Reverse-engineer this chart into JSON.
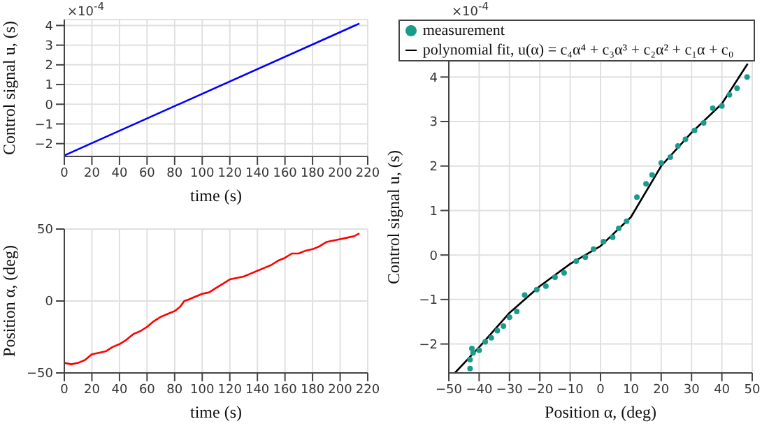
{
  "chart_data": [
    {
      "type": "line",
      "xlabel": "time (s)",
      "ylabel": "Control signal u, (s)",
      "annotations": [
        "×10$^{-4}$"
      ],
      "grid": true,
      "legend": false,
      "marker": "none",
      "xlim": [
        0,
        220
      ],
      "xticks": [
        0,
        20,
        40,
        60,
        80,
        100,
        120,
        140,
        160,
        180,
        200,
        220
      ],
      "ylim": [
        -2.65,
        4.3
      ],
      "yticks": [
        -2,
        -1,
        0,
        1,
        2,
        3,
        4
      ],
      "series": [
        {
          "color": "#0000ff",
          "x": [
            0,
            214
          ],
          "values": [
            -2.6,
            4.1
          ]
        }
      ]
    },
    {
      "type": "line",
      "xlabel": "time (s)",
      "ylabel": "Position α, (deg)",
      "grid": true,
      "legend": false,
      "marker": "none",
      "xlim": [
        0,
        220
      ],
      "xticks": [
        0,
        20,
        40,
        60,
        80,
        100,
        120,
        140,
        160,
        180,
        200,
        220
      ],
      "ylim": [
        -50,
        50
      ],
      "yticks": [
        -50,
        0,
        50
      ],
      "series": [
        {
          "color": "#ff0000",
          "x": [
            0,
            5,
            10,
            15,
            20,
            25,
            30,
            35,
            40,
            45,
            50,
            55,
            60,
            65,
            70,
            75,
            80,
            84,
            87,
            90,
            95,
            100,
            105,
            110,
            115,
            120,
            125,
            130,
            135,
            140,
            145,
            150,
            155,
            160,
            165,
            170,
            175,
            180,
            185,
            190,
            195,
            200,
            205,
            210,
            214
          ],
          "values": [
            -43,
            -44,
            -43,
            -41,
            -37,
            -36,
            -35,
            -32,
            -30,
            -27,
            -23,
            -21,
            -18,
            -14,
            -11,
            -9,
            -7,
            -4,
            0,
            1,
            3,
            5,
            6,
            9,
            12,
            15,
            16,
            17,
            19,
            21,
            23,
            25,
            28,
            30,
            33,
            33,
            35,
            36,
            38,
            41,
            42,
            43,
            44,
            45,
            47
          ]
        }
      ]
    },
    {
      "type": "scatter",
      "xlabel": "Position α, (deg)",
      "ylabel": "Control signal u, (s)",
      "annotations": [
        "×10$^{-4}$"
      ],
      "grid": true,
      "legend": "top",
      "xlim": [
        -50,
        50
      ],
      "xticks": [
        -50,
        -40,
        -30,
        -20,
        -10,
        0,
        10,
        20,
        30,
        40,
        50
      ],
      "ylim": [
        -2.65,
        4.35
      ],
      "yticks": [
        -2,
        -1,
        0,
        1,
        2,
        3,
        4
      ],
      "series": [
        {
          "name": "measurement",
          "color": "#1a9c8c",
          "marker": "circle",
          "x": [
            -43,
            -43,
            -42.4,
            -42,
            -40,
            -38,
            -36,
            -34,
            -32,
            -30,
            -27.6,
            -25,
            -21,
            -18,
            -15,
            -12,
            -8,
            -5,
            -2.3,
            1,
            4,
            6,
            8.6,
            12,
            15,
            17,
            20,
            23,
            25.5,
            28,
            31,
            34,
            37,
            40,
            42.5,
            45,
            48.3
          ],
          "values": [
            -2.55,
            -2.35,
            -2.1,
            -2.2,
            -2.14,
            -1.95,
            -1.86,
            -1.7,
            -1.6,
            -1.4,
            -1.27,
            -0.9,
            -0.78,
            -0.7,
            -0.5,
            -0.4,
            -0.14,
            -0.05,
            0.13,
            0.3,
            0.4,
            0.6,
            0.76,
            1.3,
            1.6,
            1.8,
            2.07,
            2.2,
            2.45,
            2.6,
            2.8,
            2.97,
            3.3,
            3.35,
            3.6,
            3.75,
            4.0
          ]
        },
        {
          "type": "line",
          "name": "polynomial fit, u(α) = c₄α⁴ + c₃α³ + c₂α² + c₁α + c₀",
          "color": "#000000",
          "marker": "none",
          "x": [
            -48,
            -40,
            -30,
            -20,
            -10,
            0,
            10,
            20,
            30,
            40,
            48.5
          ],
          "values": [
            -2.65,
            -2.07,
            -1.3,
            -0.7,
            -0.2,
            0.2,
            0.85,
            2.0,
            2.75,
            3.4,
            4.3
          ]
        }
      ]
    }
  ]
}
